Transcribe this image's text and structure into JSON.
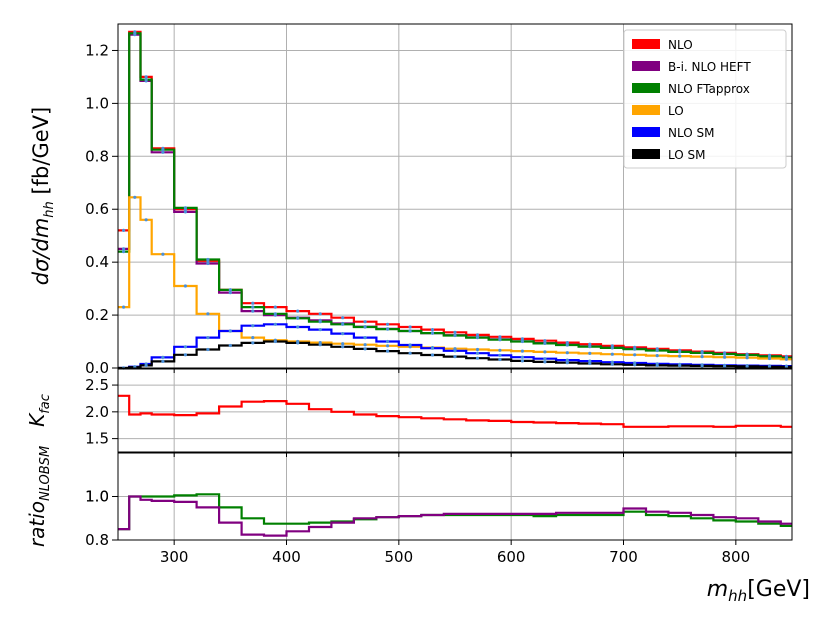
{
  "chart_data": {
    "type": "line",
    "xlabel": "m_hh[GeV]",
    "xlim": [
      250,
      850
    ],
    "xticks": [
      300,
      400,
      500,
      600,
      700,
      800
    ],
    "bin_edges": [
      250,
      260,
      270,
      280,
      300,
      320,
      340,
      360,
      380,
      400,
      420,
      440,
      460,
      480,
      500,
      520,
      540,
      560,
      580,
      600,
      620,
      640,
      660,
      680,
      700,
      720,
      740,
      760,
      780,
      800,
      820,
      840,
      850
    ],
    "panels": [
      {
        "id": "main",
        "ylabel": "dσ/dm_hh [fb/GeV]",
        "ylim": [
          0,
          1.3
        ],
        "yticks": [
          "0.0",
          "0.2",
          "0.4",
          "0.6",
          "0.8",
          "1.0",
          "1.2"
        ],
        "legend": "top-right",
        "series": [
          {
            "name": "NLO",
            "color": "#ff0000",
            "values": [
              0.52,
              1.27,
              1.1,
              0.83,
              0.6,
              0.405,
              0.295,
              0.245,
              0.23,
              0.215,
              0.205,
              0.19,
              0.175,
              0.165,
              0.155,
              0.145,
              0.135,
              0.125,
              0.118,
              0.11,
              0.103,
              0.096,
              0.09,
              0.084,
              0.078,
              0.072,
              0.067,
              0.062,
              0.057,
              0.052,
              0.048,
              0.044
            ]
          },
          {
            "name": "B-i. NLO HEFT",
            "color": "#800080",
            "values": [
              0.45,
              1.26,
              1.085,
              0.815,
              0.59,
              0.395,
              0.285,
              0.215,
              0.2,
              0.19,
              0.18,
              0.168,
              0.156,
              0.148,
              0.14,
              0.132,
              0.124,
              0.116,
              0.108,
              0.101,
              0.094,
              0.088,
              0.082,
              0.077,
              0.072,
              0.067,
              0.062,
              0.058,
              0.054,
              0.05,
              0.045,
              0.04
            ]
          },
          {
            "name": "NLO FTapprox",
            "color": "#008000",
            "values": [
              0.44,
              1.265,
              1.09,
              0.825,
              0.605,
              0.41,
              0.295,
              0.23,
              0.205,
              0.188,
              0.175,
              0.165,
              0.155,
              0.147,
              0.14,
              0.132,
              0.123,
              0.115,
              0.107,
              0.1,
              0.093,
              0.087,
              0.081,
              0.076,
              0.071,
              0.066,
              0.061,
              0.057,
              0.053,
              0.049,
              0.044,
              0.039
            ]
          },
          {
            "name": "LO",
            "color": "#ffa500",
            "values": [
              0.23,
              0.645,
              0.56,
              0.43,
              0.31,
              0.205,
              0.14,
              0.115,
              0.105,
              0.1,
              0.096,
              0.092,
              0.088,
              0.084,
              0.08,
              0.077,
              0.073,
              0.07,
              0.067,
              0.064,
              0.061,
              0.058,
              0.055,
              0.052,
              0.05,
              0.047,
              0.045,
              0.043,
              0.041,
              0.039,
              0.036,
              0.033
            ]
          },
          {
            "name": "NLO SM",
            "color": "#0000ff",
            "values": [
              0.0,
              0.005,
              0.015,
              0.04,
              0.08,
              0.115,
              0.14,
              0.16,
              0.165,
              0.155,
              0.145,
              0.13,
              0.115,
              0.1,
              0.087,
              0.075,
              0.065,
              0.056,
              0.048,
              0.041,
              0.035,
              0.03,
              0.026,
              0.022,
              0.019,
              0.016,
              0.014,
              0.012,
              0.01,
              0.009,
              0.008,
              0.007
            ]
          },
          {
            "name": "LO SM",
            "color": "#000000",
            "values": [
              0.0,
              0.003,
              0.01,
              0.025,
              0.05,
              0.07,
              0.085,
              0.095,
              0.1,
              0.095,
              0.088,
              0.08,
              0.072,
              0.064,
              0.056,
              0.049,
              0.043,
              0.037,
              0.032,
              0.027,
              0.023,
              0.02,
              0.017,
              0.014,
              0.012,
              0.01,
              0.009,
              0.008,
              0.007,
              0.006,
              0.005,
              0.004
            ]
          }
        ]
      },
      {
        "id": "kfac",
        "ylabel": "K_fac",
        "ylim": [
          1.25,
          2.8
        ],
        "yticks": [
          "1.5",
          "2.0",
          "2.5"
        ],
        "series": [
          {
            "name": "",
            "color": "#ff0000",
            "values": [
              2.3,
              1.95,
              1.97,
              1.95,
              1.94,
              1.97,
              2.1,
              2.19,
              2.2,
              2.15,
              2.05,
              2.0,
              1.95,
              1.92,
              1.9,
              1.88,
              1.86,
              1.84,
              1.83,
              1.81,
              1.8,
              1.79,
              1.78,
              1.77,
              1.72,
              1.72,
              1.73,
              1.73,
              1.72,
              1.74,
              1.74,
              1.72
            ]
          }
        ]
      },
      {
        "id": "ratio",
        "ylabel": "ratio_NLO_BSM",
        "ylim": [
          0.8,
          1.2
        ],
        "yticks": [
          "0.8",
          "1.0",
          "1.0"
        ],
        "series": [
          {
            "name": "",
            "color": "#008000",
            "values": [
              0.85,
              1.0,
              1.0,
              1.0,
              1.005,
              1.01,
              0.95,
              0.9,
              0.875,
              0.875,
              0.88,
              0.885,
              0.895,
              0.905,
              0.91,
              0.915,
              0.915,
              0.915,
              0.915,
              0.915,
              0.91,
              0.915,
              0.915,
              0.915,
              0.93,
              0.915,
              0.91,
              0.9,
              0.89,
              0.885,
              0.875,
              0.865
            ]
          },
          {
            "name": "",
            "color": "#800080",
            "values": [
              0.85,
              1.0,
              0.985,
              0.98,
              0.975,
              0.95,
              0.88,
              0.825,
              0.82,
              0.84,
              0.86,
              0.88,
              0.9,
              0.905,
              0.91,
              0.915,
              0.92,
              0.92,
              0.92,
              0.92,
              0.92,
              0.925,
              0.925,
              0.925,
              0.945,
              0.93,
              0.925,
              0.915,
              0.905,
              0.9,
              0.885,
              0.875
            ]
          }
        ]
      }
    ]
  }
}
